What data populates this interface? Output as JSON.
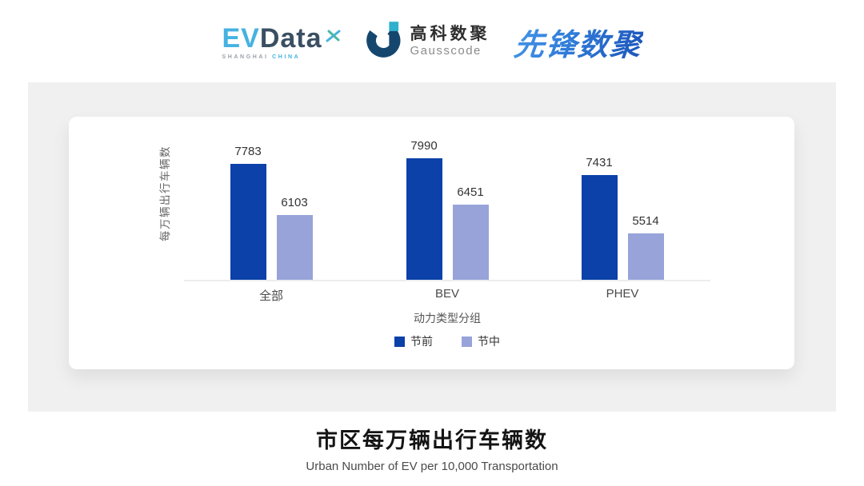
{
  "header": {
    "evdata": {
      "ev": "EV",
      "data": "Data",
      "shanghai": "SHANGHAI",
      "china": "CHINA"
    },
    "gausscode": {
      "cn": "高科数聚",
      "en": "Gausscode"
    },
    "pioneer": {
      "text": "先锋数聚"
    }
  },
  "chart_data": {
    "type": "bar",
    "title": "市区每万辆出行车辆数",
    "subtitle": "Urban Number of EV per 10,000 Transportation",
    "categories": [
      "全部",
      "BEV",
      "PHEV"
    ],
    "series": [
      {
        "name": "节前",
        "color": "#0b41a8",
        "values": [
          7783,
          7990,
          7431
        ]
      },
      {
        "name": "节中",
        "color": "#97a3d9",
        "values": [
          6103,
          6451,
          5514
        ]
      }
    ],
    "xlabel": "动力类型分组",
    "ylabel": "每万辆出行车辆数",
    "ylim_estimated": [
      3980,
      9400
    ],
    "grid": false,
    "legend_position": "bottom",
    "value_labels_shown": true,
    "colors": {
      "pre_holiday": "#0b41a8",
      "mid_holiday": "#97a3d9",
      "axis_line": "#ededee"
    }
  }
}
